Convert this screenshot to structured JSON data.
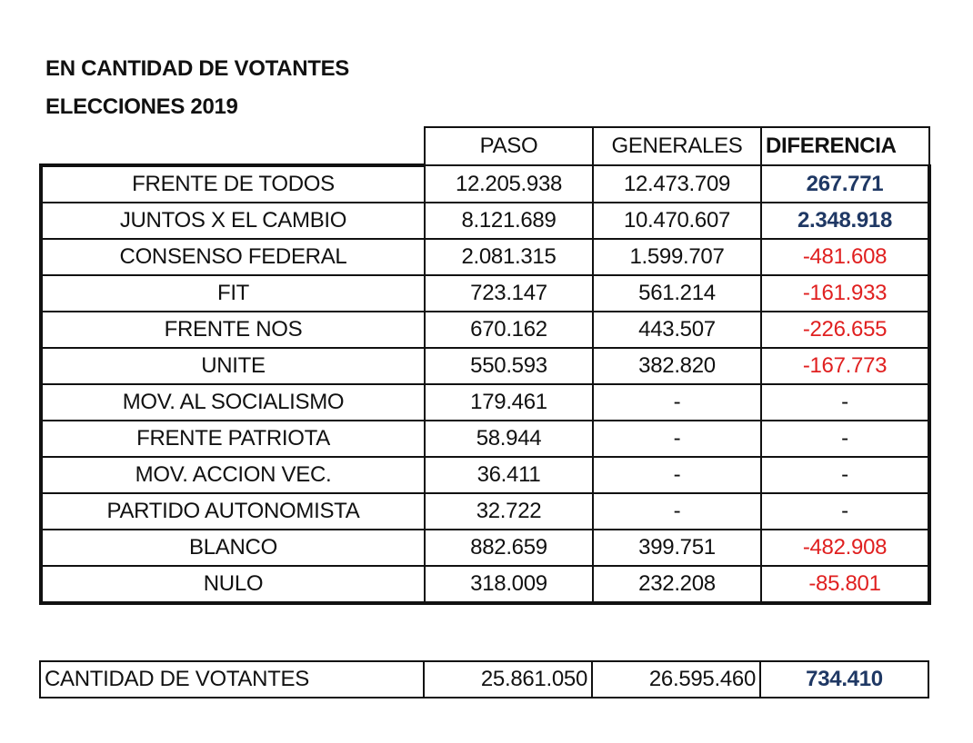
{
  "title_line1": "EN CANTIDAD DE VOTANTES",
  "title_line2": "ELECCIONES 2019",
  "columns": [
    "PASO",
    "GENERALES",
    "DIFERENCIA"
  ],
  "colors": {
    "positive": "#1f3864",
    "negative": "#e02020"
  },
  "rows": [
    {
      "party": "FRENTE DE TODOS",
      "paso": "12.205.938",
      "generales": "12.473.709",
      "diferencia": "267.771",
      "sign": "pos"
    },
    {
      "party": "JUNTOS X EL CAMBIO",
      "paso": "8.121.689",
      "generales": "10.470.607",
      "diferencia": "2.348.918",
      "sign": "pos"
    },
    {
      "party": "CONSENSO FEDERAL",
      "paso": "2.081.315",
      "generales": "1.599.707",
      "diferencia": "-481.608",
      "sign": "neg"
    },
    {
      "party": "FIT",
      "paso": "723.147",
      "generales": "561.214",
      "diferencia": "-161.933",
      "sign": "neg"
    },
    {
      "party": "FRENTE NOS",
      "paso": "670.162",
      "generales": "443.507",
      "diferencia": "-226.655",
      "sign": "neg"
    },
    {
      "party": "UNITE",
      "paso": "550.593",
      "generales": "382.820",
      "diferencia": "-167.773",
      "sign": "neg"
    },
    {
      "party": "MOV. AL SOCIALISMO",
      "paso": "179.461",
      "generales": "-",
      "diferencia": "-",
      "sign": "none"
    },
    {
      "party": "FRENTE PATRIOTA",
      "paso": "58.944",
      "generales": "-",
      "diferencia": "-",
      "sign": "none"
    },
    {
      "party": "MOV. ACCION VEC.",
      "paso": "36.411",
      "generales": "-",
      "diferencia": "-",
      "sign": "none"
    },
    {
      "party": "PARTIDO AUTONOMISTA",
      "paso": "32.722",
      "generales": "-",
      "diferencia": "-",
      "sign": "none"
    },
    {
      "party": "BLANCO",
      "paso": "882.659",
      "generales": "399.751",
      "diferencia": "-482.908",
      "sign": "neg"
    },
    {
      "party": "NULO",
      "paso": "318.009",
      "generales": "232.208",
      "diferencia": "-85.801",
      "sign": "neg"
    }
  ],
  "total": {
    "label": "CANTIDAD DE VOTANTES",
    "paso": "25.861.050",
    "generales": "26.595.460",
    "diferencia": "734.410"
  }
}
